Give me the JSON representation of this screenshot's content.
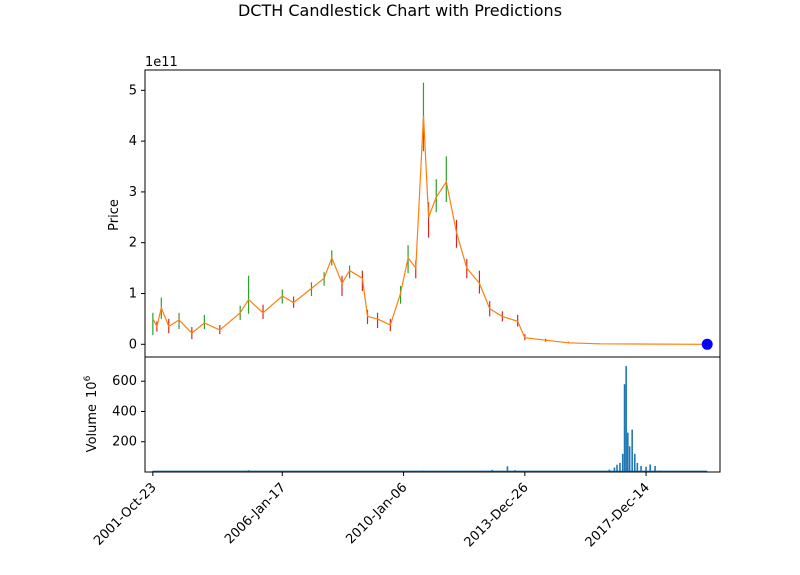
{
  "chart_data": [
    {
      "type": "candlestick",
      "title": "DCTH Candlestick Chart with Predictions",
      "ylabel": "Price",
      "y_multiplier_label": "1e11",
      "ylim": [
        -0.25,
        5.4
      ],
      "yticks": [
        0,
        1,
        2,
        3,
        4,
        5
      ],
      "x_range": [
        "2001-07-21",
        "2020-05-16"
      ],
      "xtick_labels": [
        "2001-Oct-23",
        "2006-Jan-17",
        "2010-Jan-06",
        "2013-Dec-26",
        "2017-Dec-14"
      ],
      "xtick_dates": [
        "2001-10-23",
        "2006-01-17",
        "2010-01-06",
        "2013-12-26",
        "2017-12-14"
      ],
      "series_colors": {
        "up": "#2ca02c",
        "down": "#d62728",
        "close_line": "#ff7f0e",
        "prediction": "#1f77b4"
      },
      "price_points": [
        {
          "date": "2001-10-23",
          "close": 0.5,
          "high": 0.62,
          "low": 0.18
        },
        {
          "date": "2001-12-10",
          "close": 0.35,
          "high": 0.45,
          "low": 0.25
        },
        {
          "date": "2002-02-01",
          "close": 0.72,
          "high": 0.92,
          "low": 0.5
        },
        {
          "date": "2002-05-01",
          "close": 0.35,
          "high": 0.5,
          "low": 0.22
        },
        {
          "date": "2002-09-01",
          "close": 0.48,
          "high": 0.62,
          "low": 0.3
        },
        {
          "date": "2003-02-01",
          "close": 0.22,
          "high": 0.34,
          "low": 0.1
        },
        {
          "date": "2003-07-01",
          "close": 0.42,
          "high": 0.58,
          "low": 0.3
        },
        {
          "date": "2004-01-01",
          "close": 0.28,
          "high": 0.38,
          "low": 0.2
        },
        {
          "date": "2004-09-01",
          "close": 0.62,
          "high": 0.76,
          "low": 0.48
        },
        {
          "date": "2004-12-10",
          "close": 0.88,
          "high": 1.35,
          "low": 0.6
        },
        {
          "date": "2005-06-01",
          "close": 0.62,
          "high": 0.78,
          "low": 0.5
        },
        {
          "date": "2006-01-17",
          "close": 0.95,
          "high": 1.08,
          "low": 0.8
        },
        {
          "date": "2006-06-01",
          "close": 0.82,
          "high": 0.94,
          "low": 0.72
        },
        {
          "date": "2007-01-01",
          "close": 1.1,
          "high": 1.22,
          "low": 0.95
        },
        {
          "date": "2007-06-01",
          "close": 1.3,
          "high": 1.42,
          "low": 1.15
        },
        {
          "date": "2007-09-01",
          "close": 1.7,
          "high": 1.85,
          "low": 1.55
        },
        {
          "date": "2008-01-01",
          "close": 1.2,
          "high": 1.35,
          "low": 0.95
        },
        {
          "date": "2008-04-01",
          "close": 1.45,
          "high": 1.55,
          "low": 1.3
        },
        {
          "date": "2008-09-01",
          "close": 1.3,
          "high": 1.45,
          "low": 1.05
        },
        {
          "date": "2008-11-01",
          "close": 0.55,
          "high": 0.68,
          "low": 0.4
        },
        {
          "date": "2009-03-01",
          "close": 0.5,
          "high": 0.62,
          "low": 0.32
        },
        {
          "date": "2009-08-01",
          "close": 0.38,
          "high": 0.5,
          "low": 0.26
        },
        {
          "date": "2009-12-01",
          "close": 1.0,
          "high": 1.15,
          "low": 0.8
        },
        {
          "date": "2010-03-01",
          "close": 1.7,
          "high": 1.95,
          "low": 1.4
        },
        {
          "date": "2010-06-01",
          "close": 1.5,
          "high": 1.65,
          "low": 1.3
        },
        {
          "date": "2010-09-01",
          "close": 4.5,
          "high": 5.15,
          "low": 3.8
        },
        {
          "date": "2010-11-01",
          "close": 2.5,
          "high": 2.8,
          "low": 2.1
        },
        {
          "date": "2011-02-01",
          "close": 2.9,
          "high": 3.25,
          "low": 2.6
        },
        {
          "date": "2011-06-01",
          "close": 3.2,
          "high": 3.7,
          "low": 2.8
        },
        {
          "date": "2011-10-01",
          "close": 2.2,
          "high": 2.45,
          "low": 1.9
        },
        {
          "date": "2012-02-01",
          "close": 1.5,
          "high": 1.68,
          "low": 1.3
        },
        {
          "date": "2012-07-01",
          "close": 1.2,
          "high": 1.45,
          "low": 1.0
        },
        {
          "date": "2012-11-01",
          "close": 0.7,
          "high": 0.85,
          "low": 0.55
        },
        {
          "date": "2013-04-01",
          "close": 0.55,
          "high": 0.65,
          "low": 0.45
        },
        {
          "date": "2013-10-01",
          "close": 0.45,
          "high": 0.58,
          "low": 0.35
        },
        {
          "date": "2013-12-26",
          "close": 0.13,
          "high": 0.2,
          "low": 0.08
        },
        {
          "date": "2014-09-01",
          "close": 0.08,
          "high": 0.11,
          "low": 0.05
        },
        {
          "date": "2015-06-01",
          "close": 0.03,
          "high": 0.05,
          "low": 0.02
        },
        {
          "date": "2016-06-01",
          "close": 0.01,
          "high": 0.02,
          "low": 0.0
        },
        {
          "date": "2019-12-15",
          "close": 0.0,
          "high": 0.0,
          "low": 0.0
        }
      ],
      "prediction": {
        "date": "2019-12-15",
        "value": 0.0
      }
    },
    {
      "type": "bar",
      "ylabel": "Volume",
      "ylabel_multiplier": "10",
      "ylabel_exponent": "6",
      "ylim": [
        0,
        760
      ],
      "yticks": [
        200,
        400,
        600
      ],
      "bars": [
        {
          "date": "2001-10-23",
          "value": 6
        },
        {
          "date": "2002-06-01",
          "value": 4
        },
        {
          "date": "2004-12-10",
          "value": 12
        },
        {
          "date": "2008-01-01",
          "value": 5
        },
        {
          "date": "2010-09-01",
          "value": 9
        },
        {
          "date": "2010-11-01",
          "value": 6
        },
        {
          "date": "2011-10-01",
          "value": 8
        },
        {
          "date": "2012-12-01",
          "value": 14
        },
        {
          "date": "2013-06-01",
          "value": 38
        },
        {
          "date": "2013-09-01",
          "value": 12
        },
        {
          "date": "2016-10-01",
          "value": 16
        },
        {
          "date": "2016-12-01",
          "value": 30
        },
        {
          "date": "2017-01-01",
          "value": 48
        },
        {
          "date": "2017-02-05",
          "value": 60
        },
        {
          "date": "2017-03-10",
          "value": 120
        },
        {
          "date": "2017-04-01",
          "value": 580
        },
        {
          "date": "2017-04-20",
          "value": 700
        },
        {
          "date": "2017-05-10",
          "value": 260
        },
        {
          "date": "2017-06-01",
          "value": 170
        },
        {
          "date": "2017-07-01",
          "value": 280
        },
        {
          "date": "2017-08-01",
          "value": 120
        },
        {
          "date": "2017-09-01",
          "value": 60
        },
        {
          "date": "2017-10-15",
          "value": 40
        },
        {
          "date": "2017-12-14",
          "value": 35
        },
        {
          "date": "2018-02-01",
          "value": 50
        },
        {
          "date": "2018-04-01",
          "value": 40
        },
        {
          "date": "2018-06-01",
          "value": 10
        }
      ]
    }
  ]
}
